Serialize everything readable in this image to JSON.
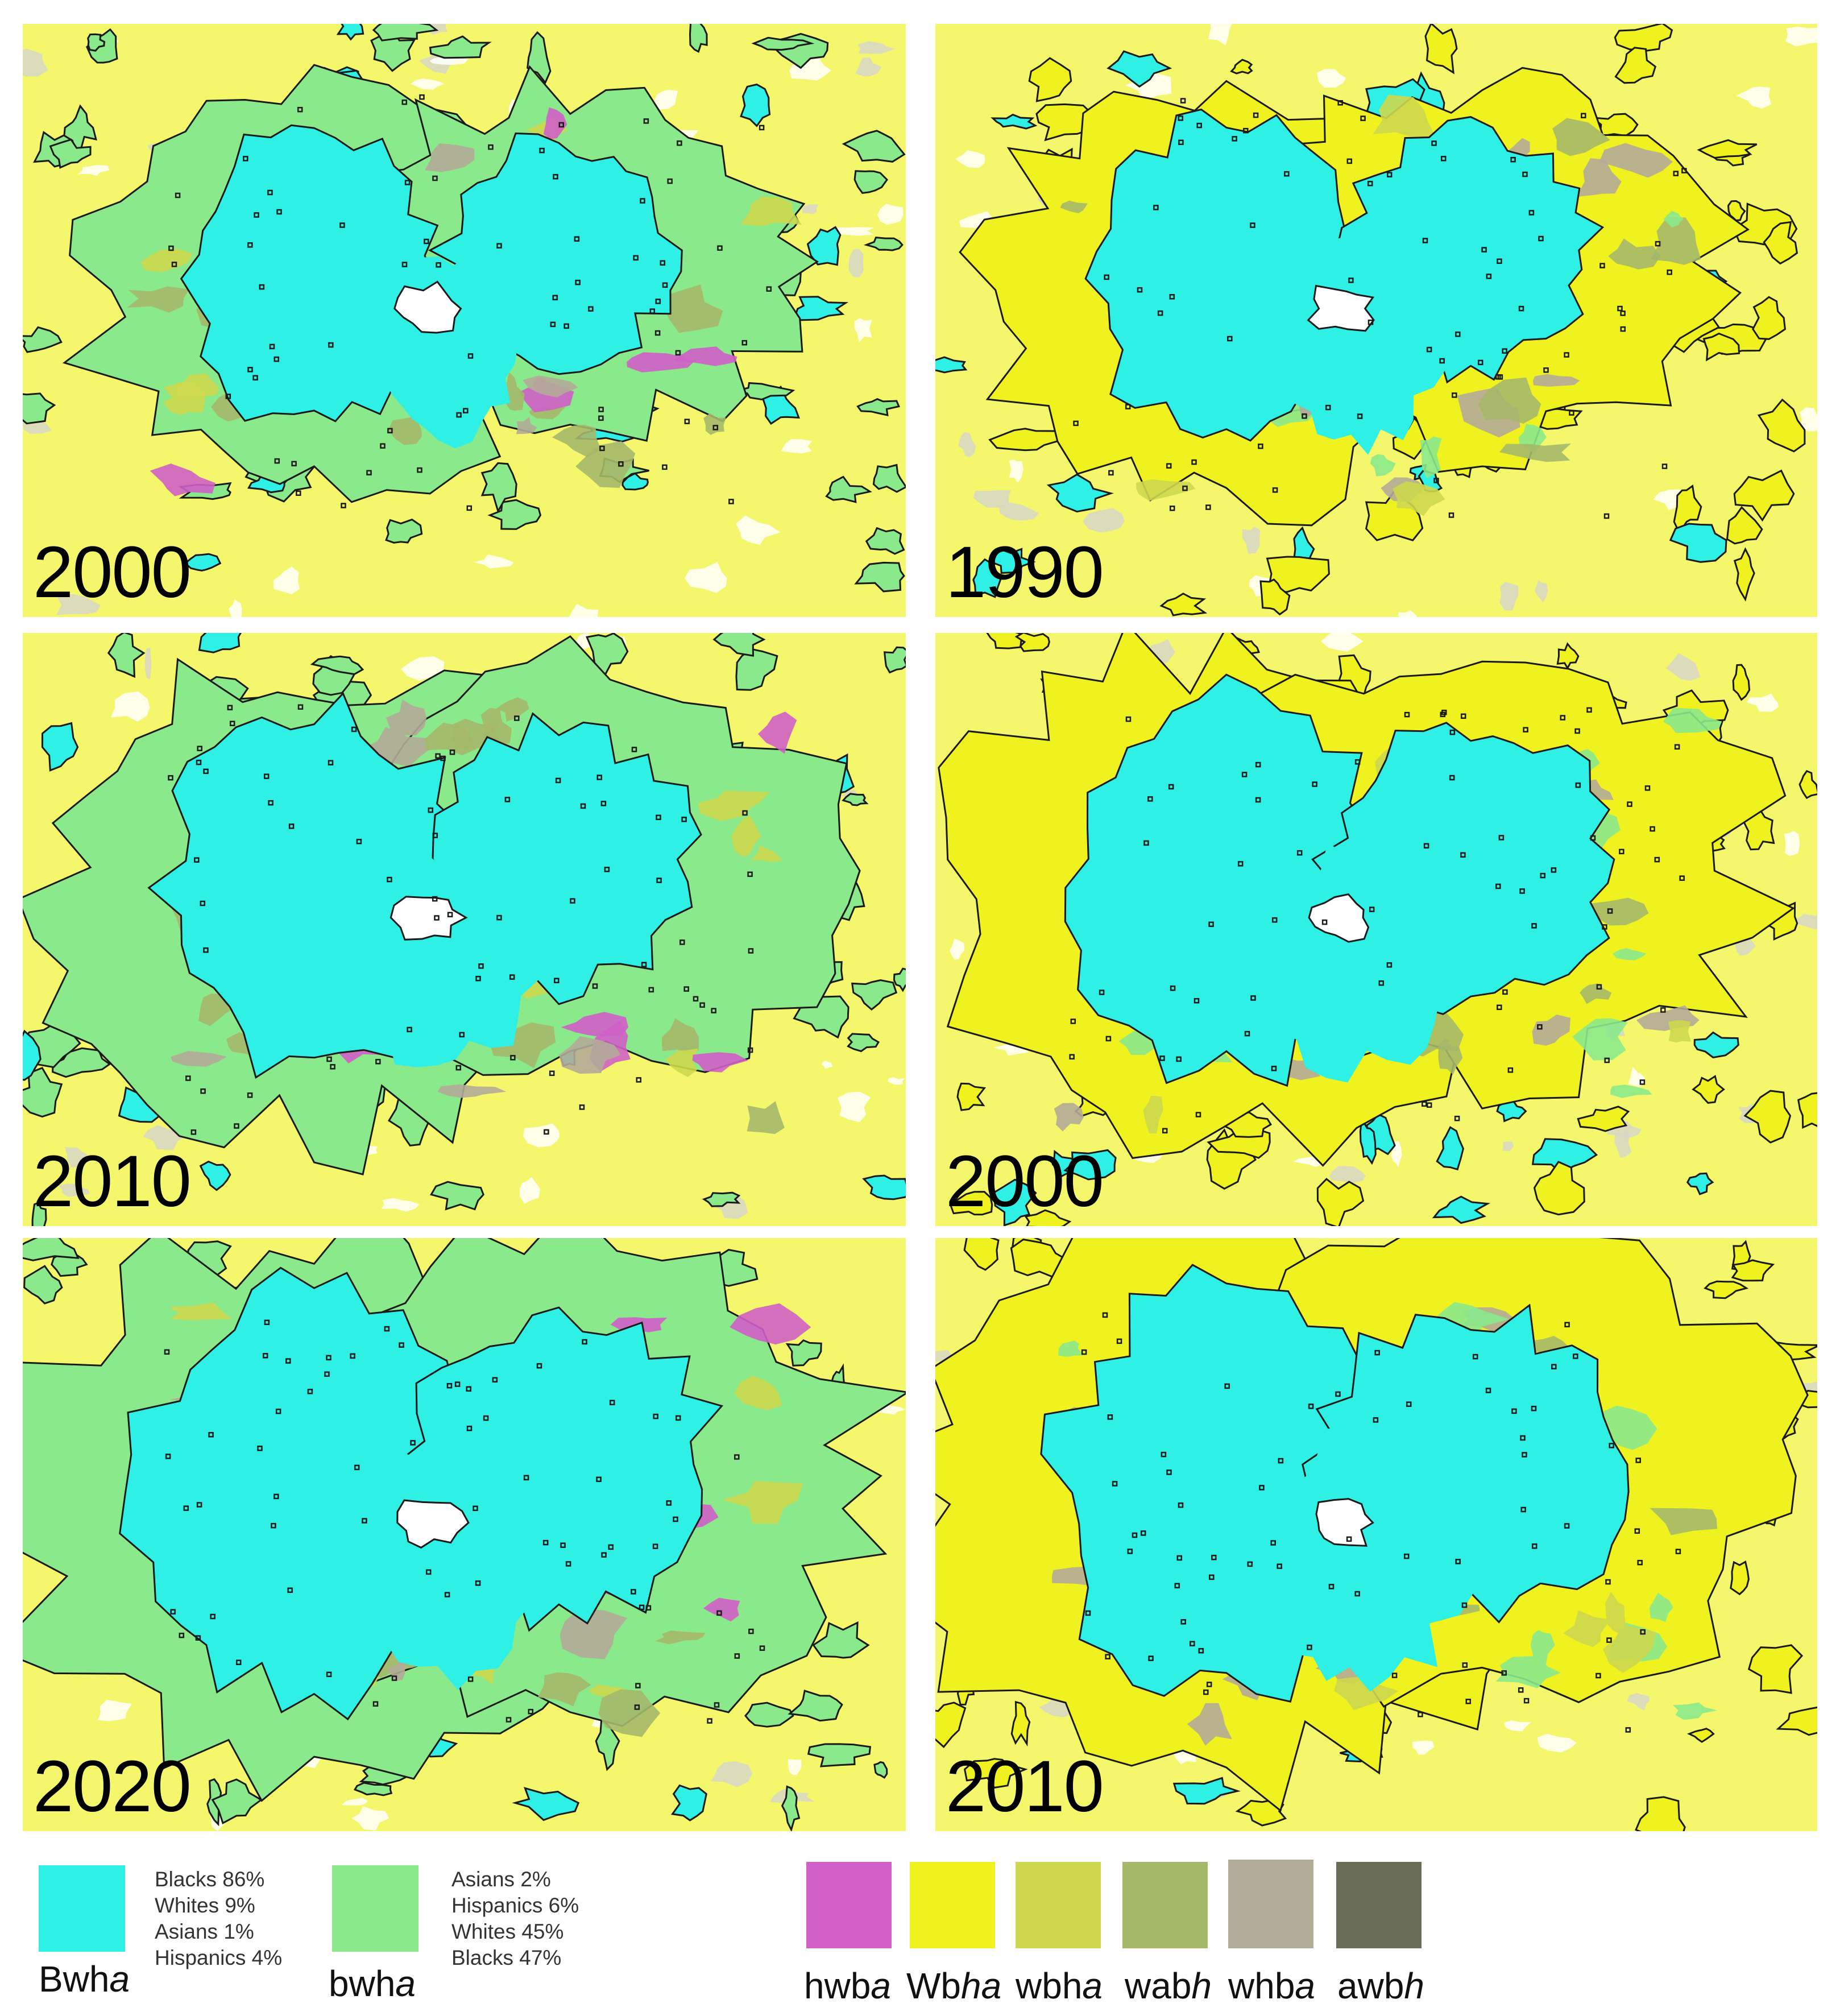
{
  "colors": {
    "Bwha": "#2ef0e4",
    "bwha": "#8ae98b",
    "hwba": "#d05fc8",
    "Wbha": "#eff21e",
    "wbha": "#cdd84e",
    "wabh": "#a5b86a",
    "whba": "#b2ab98",
    "awbh": "#6a6e56",
    "background": "#f4f76b",
    "outline": "#1a1a1a"
  },
  "panels": [
    {
      "year": "2000",
      "variant": "green"
    },
    {
      "year": "1990",
      "variant": "yellow"
    },
    {
      "year": "2010",
      "variant": "green"
    },
    {
      "year": "2000",
      "variant": "yellow"
    },
    {
      "year": "2020",
      "variant": "green"
    },
    {
      "year": "2010",
      "variant": "yellow"
    }
  ],
  "legend": {
    "Bwha": {
      "prefix": "Bwh",
      "italic": "a",
      "stats": [
        "Blacks 86%",
        "Whites 9%",
        "Asians 1%",
        "Hispanics 4%"
      ]
    },
    "bwha": {
      "prefix": "bwh",
      "italic": "a",
      "stats": [
        "Asians 2%",
        "Hispanics 6%",
        "Whites 45%",
        "Blacks 47%"
      ]
    },
    "small": [
      {
        "key": "hwba",
        "prefix": "hwb",
        "italic": "a"
      },
      {
        "key": "Wbha",
        "prefix": "Wb",
        "italic": "ha"
      },
      {
        "key": "wbha",
        "prefix": "wbh",
        "italic": "a"
      },
      {
        "key": "wabh",
        "prefix": "wab",
        "italic": "h"
      },
      {
        "key": "whba",
        "prefix": "whb",
        "italic": "a"
      },
      {
        "key": "awbh",
        "prefix": "awb",
        "italic": "h"
      }
    ]
  }
}
